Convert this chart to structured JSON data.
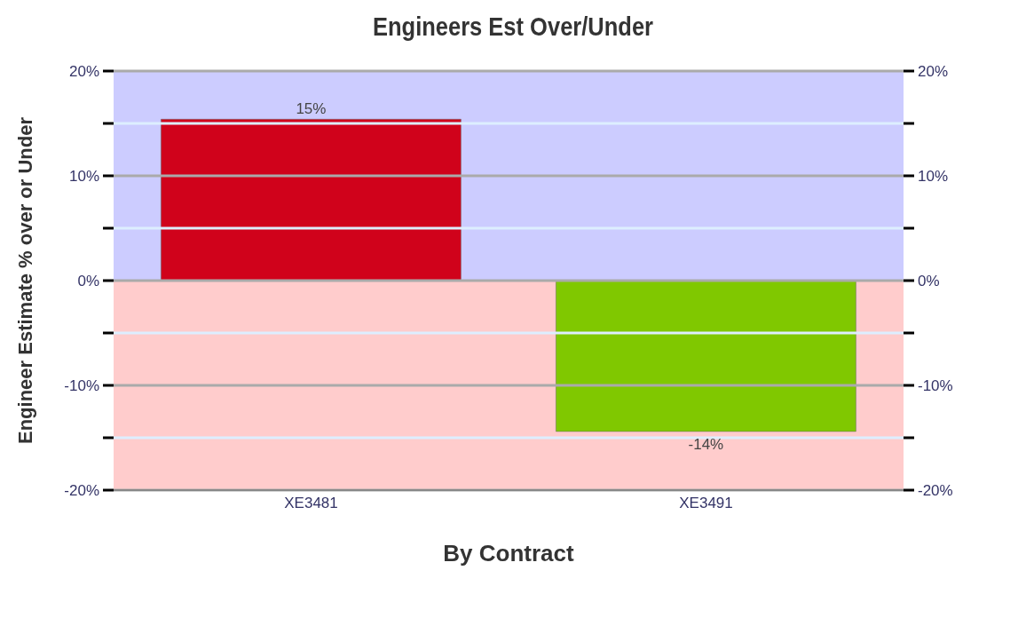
{
  "chart_data": {
    "type": "bar",
    "title": "Engineers Est Over/Under",
    "xlabel": "By Contract",
    "ylabel": "Engineer Estimate % over or Under",
    "categories": [
      "XE3481",
      "XE3491"
    ],
    "values": [
      15.4,
      -14.4
    ],
    "colors": [
      "#d0021b",
      "#80c800"
    ],
    "value_labels": [
      "15%",
      "-14%"
    ],
    "ylim": [
      -20,
      20
    ],
    "yticks": [
      {
        "value": -20,
        "label": "-20%"
      },
      {
        "value": -15,
        "label": null
      },
      {
        "value": -10,
        "label": "-10%"
      },
      {
        "value": -5,
        "label": null
      },
      {
        "value": 0,
        "label": "0%"
      },
      {
        "value": 5,
        "label": null
      },
      {
        "value": 10,
        "label": "10%"
      },
      {
        "value": 15,
        "label": null
      },
      {
        "value": 20,
        "label": "20%"
      }
    ],
    "y2lim": [
      -20,
      20
    ],
    "y2ticks": [
      {
        "value": -20,
        "label": "-20%"
      },
      {
        "value": -15,
        "label": null
      },
      {
        "value": -10,
        "label": "-10%"
      },
      {
        "value": -5,
        "label": null
      },
      {
        "value": 0,
        "label": "0%"
      },
      {
        "value": 5,
        "label": null
      },
      {
        "value": 10,
        "label": "10%"
      },
      {
        "value": 15,
        "label": null
      },
      {
        "value": 20,
        "label": "20%"
      }
    ],
    "bands": [
      {
        "axis": "y",
        "from": 0,
        "to": 20,
        "color": "#ccccff"
      },
      {
        "axis": "y",
        "from": -20,
        "to": 0,
        "color": "#ffcccc"
      }
    ],
    "grid": "y"
  }
}
